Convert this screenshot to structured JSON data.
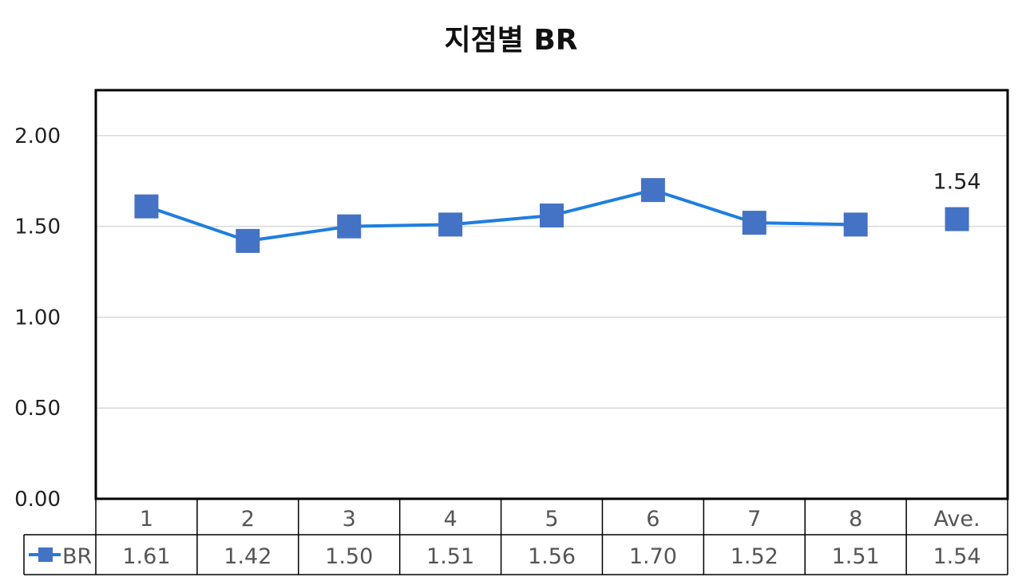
{
  "chart_data": {
    "type": "line",
    "title": "지점별 BR",
    "categories": [
      "1",
      "2",
      "3",
      "4",
      "5",
      "6",
      "7",
      "8",
      "Ave."
    ],
    "series": [
      {
        "name": "BR",
        "values": [
          1.61,
          1.42,
          1.5,
          1.51,
          1.56,
          1.7,
          1.52,
          1.51,
          1.54
        ],
        "value_labels": [
          "1.61",
          "1.42",
          "1.50",
          "1.51",
          "1.56",
          "1.70",
          "1.52",
          "1.51",
          "1.54"
        ],
        "connected_points": 8,
        "color": "#1f7ee0",
        "marker_color": "#4472c4",
        "marker": "square"
      }
    ],
    "data_labels": [
      {
        "category": "Ave.",
        "text": "1.54"
      }
    ],
    "ylim": [
      0,
      2.25
    ],
    "y_ticks": [
      "0.00",
      "0.50",
      "1.00",
      "1.50",
      "2.00"
    ],
    "y_tick_values": [
      0,
      0.5,
      1.0,
      1.5,
      2.0
    ],
    "grid": true,
    "legend": "data-table",
    "data_table": true,
    "xlabel": "",
    "ylabel": ""
  }
}
